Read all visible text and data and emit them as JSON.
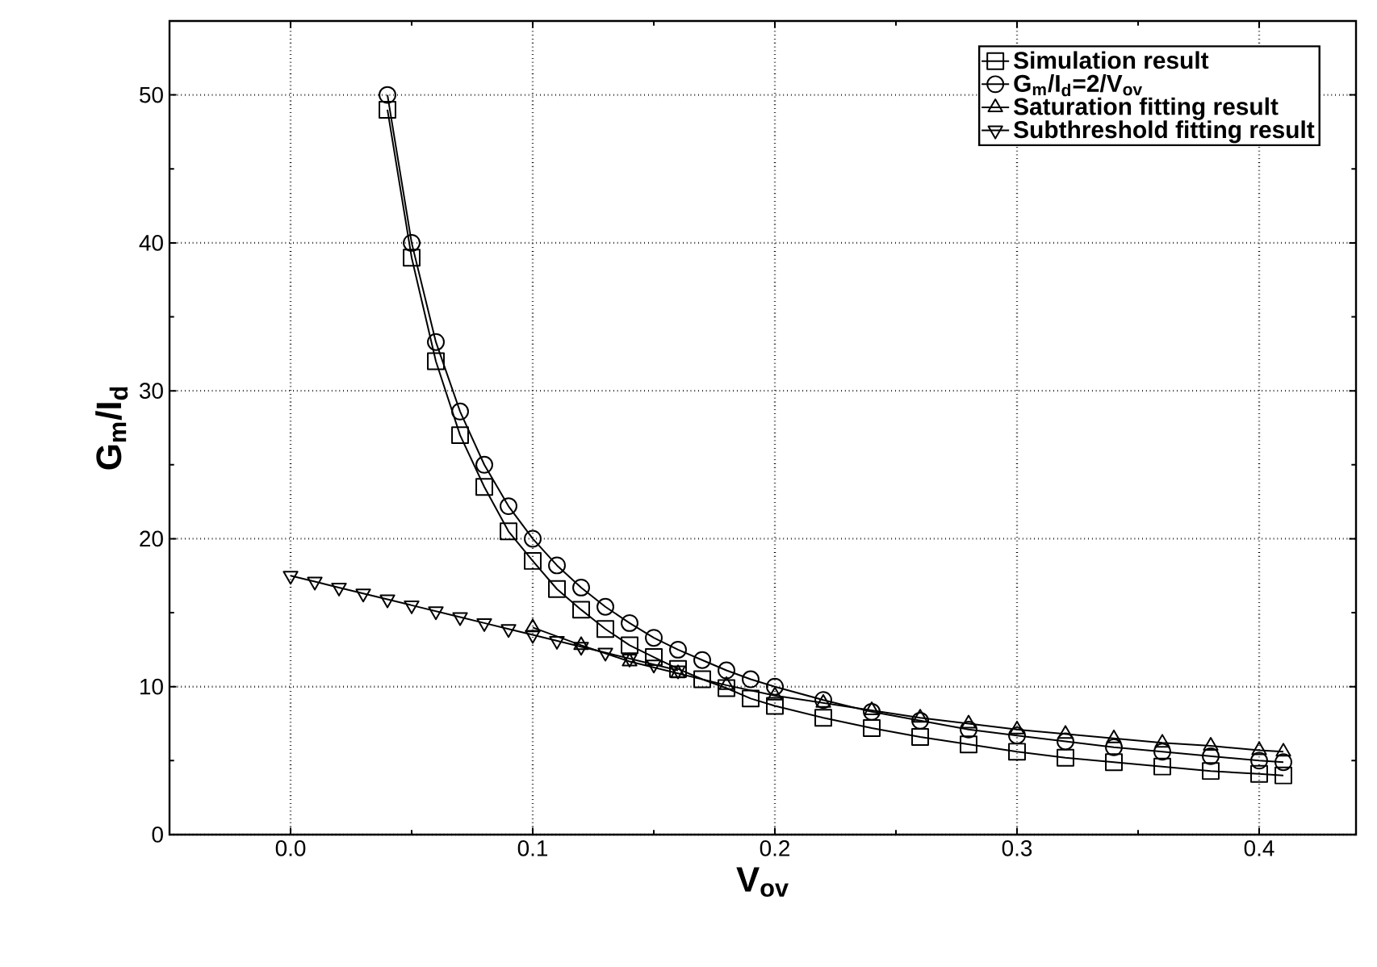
{
  "chart_data": {
    "type": "line",
    "xlabel": "V$_{ov}$",
    "ylabel": "G$_{m}$/I$_{d}$",
    "xlim": [
      -0.05,
      0.44
    ],
    "ylim": [
      0,
      55
    ],
    "xticks": [
      {
        "value": 0,
        "label": "0.0"
      },
      0.1,
      0.2,
      0.3,
      0.4
    ],
    "yticks": [
      0,
      10,
      20,
      30,
      40,
      50
    ],
    "grid": true,
    "legend": "top right",
    "line_style": "solid",
    "series": [
      {
        "name": "Simulation result",
        "color": "#000000",
        "marker": "square",
        "x": [
          0.04,
          0.05,
          0.06,
          0.07,
          0.08,
          0.09,
          0.1,
          0.11,
          0.12,
          0.13,
          0.14,
          0.15,
          0.16,
          0.17,
          0.18,
          0.19,
          0.2,
          0.22,
          0.24,
          0.26,
          0.28,
          0.3,
          0.32,
          0.34,
          0.36,
          0.38,
          0.4,
          0.41
        ],
        "values": [
          49,
          39,
          32,
          27,
          23.5,
          20.5,
          18.5,
          16.6,
          15.2,
          13.9,
          12.8,
          12,
          11.2,
          10.5,
          9.9,
          9.2,
          8.7,
          7.9,
          7.2,
          6.6,
          6.1,
          5.6,
          5.2,
          4.9,
          4.6,
          4.3,
          4.1,
          4.0
        ]
      },
      {
        "name": "G$_{m}$/I$_{d}$=2/V$_{ov}$",
        "color": "#000000",
        "marker": "circle",
        "x": [
          0.04,
          0.05,
          0.06,
          0.07,
          0.08,
          0.09,
          0.1,
          0.11,
          0.12,
          0.13,
          0.14,
          0.15,
          0.16,
          0.17,
          0.18,
          0.19,
          0.2,
          0.22,
          0.24,
          0.26,
          0.28,
          0.3,
          0.32,
          0.34,
          0.36,
          0.38,
          0.4,
          0.41
        ],
        "values": [
          50,
          40,
          33.3,
          28.6,
          25,
          22.2,
          20,
          18.2,
          16.7,
          15.4,
          14.3,
          13.3,
          12.5,
          11.8,
          11.1,
          10.5,
          10,
          9.1,
          8.3,
          7.7,
          7.1,
          6.7,
          6.3,
          5.9,
          5.6,
          5.3,
          5,
          4.9
        ]
      },
      {
        "name": "Saturation fitting result",
        "color": "#000000",
        "marker": "triangle",
        "x": [
          0.1,
          0.12,
          0.14,
          0.16,
          0.18,
          0.2,
          0.22,
          0.24,
          0.26,
          0.28,
          0.3,
          0.32,
          0.34,
          0.36,
          0.38,
          0.4,
          0.41
        ],
        "values": [
          14.0,
          12.8,
          11.7,
          10.9,
          10.1,
          9.4,
          8.9,
          8.4,
          7.9,
          7.5,
          7.1,
          6.8,
          6.5,
          6.2,
          6.0,
          5.7,
          5.6
        ]
      },
      {
        "name": "Subthreshold fitting result",
        "color": "#000000",
        "marker": "triangle-down",
        "x": [
          0,
          0.01,
          0.02,
          0.03,
          0.04,
          0.05,
          0.06,
          0.07,
          0.08,
          0.09,
          0.1,
          0.11,
          0.12,
          0.13,
          0.14,
          0.15,
          0.16
        ],
        "values": [
          17.5,
          17.1,
          16.7,
          16.3,
          15.9,
          15.5,
          15.1,
          14.7,
          14.3,
          13.9,
          13.5,
          13.1,
          12.7,
          12.3,
          11.9,
          11.5,
          11.1
        ]
      }
    ]
  }
}
